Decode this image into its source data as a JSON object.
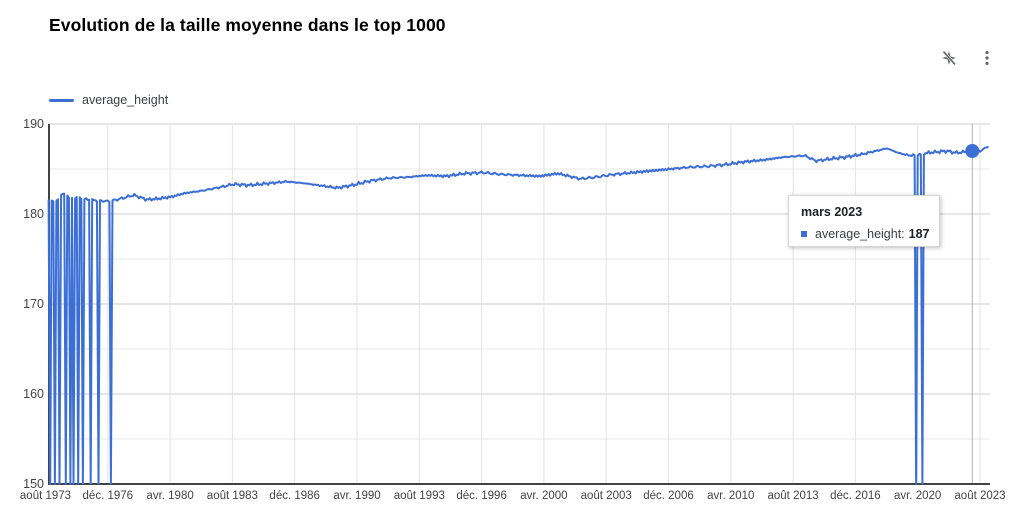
{
  "header": {
    "title": "Evolution de la taille moyenne dans le top 1000",
    "icons": [
      {
        "name": "smart-suggestions-off-icon"
      },
      {
        "name": "more-options-icon"
      }
    ]
  },
  "legend": {
    "label": "average_height"
  },
  "tooltip": {
    "title": "mars 2023",
    "series_label": "average_height:",
    "value": "187"
  },
  "colors": {
    "series": "#3c6fd6",
    "grid_major": "#cccccc",
    "grid_minor": "#e8e8e8",
    "grid_vertical": "#e3e3e3",
    "crosshair": "#b0b0b0",
    "axis_line": "#424242",
    "axis_text": "#444444",
    "icon": "#5f6368"
  },
  "chart_data": {
    "type": "line",
    "title": "Evolution de la taille moyenne dans le top 1000",
    "series_name": "average_height",
    "legend_position": "top-left",
    "grid": true,
    "ylim": [
      150,
      190
    ],
    "y_tick_values": [
      190,
      180,
      170,
      160,
      150
    ],
    "x_tick_labels": [
      "août 1973",
      "déc. 1976",
      "avr. 1980",
      "août 1983",
      "déc. 1986",
      "avr. 1990",
      "août 1993",
      "déc. 1996",
      "avr. 2000",
      "août 2003",
      "déc. 2006",
      "avr. 2010",
      "août 2013",
      "déc. 2016",
      "avr. 2020",
      "août 2023"
    ],
    "t_start": 1973.75,
    "t_end": 2024.0,
    "anchors": [
      [
        1973.75,
        181.4
      ],
      [
        1974.3,
        181.6
      ],
      [
        1974.5,
        182.3
      ],
      [
        1974.8,
        181.9
      ],
      [
        1975.3,
        181.8
      ],
      [
        1975.9,
        181.6
      ],
      [
        1976.4,
        181.5
      ],
      [
        1977.0,
        181.4
      ],
      [
        1977.6,
        181.7
      ],
      [
        1978.3,
        182.1
      ],
      [
        1979.0,
        181.6
      ],
      [
        1979.6,
        181.7
      ],
      [
        1980.3,
        181.9
      ],
      [
        1981.0,
        182.3
      ],
      [
        1982.0,
        182.6
      ],
      [
        1983.0,
        183.0
      ],
      [
        1983.6,
        183.3
      ],
      [
        1984.5,
        183.2
      ],
      [
        1985.5,
        183.4
      ],
      [
        1986.5,
        183.6
      ],
      [
        1987.5,
        183.4
      ],
      [
        1988.5,
        183.1
      ],
      [
        1989.2,
        182.9
      ],
      [
        1990.0,
        183.2
      ],
      [
        1991.0,
        183.7
      ],
      [
        1992.0,
        184.0
      ],
      [
        1993.0,
        184.1
      ],
      [
        1994.0,
        184.3
      ],
      [
        1995.0,
        184.2
      ],
      [
        1996.0,
        184.5
      ],
      [
        1997.0,
        184.6
      ],
      [
        1998.0,
        184.4
      ],
      [
        1999.0,
        184.3
      ],
      [
        2000.0,
        184.2
      ],
      [
        2001.0,
        184.5
      ],
      [
        2002.2,
        183.9
      ],
      [
        2003.0,
        184.1
      ],
      [
        2004.0,
        184.4
      ],
      [
        2005.0,
        184.6
      ],
      [
        2006.0,
        184.8
      ],
      [
        2007.0,
        185.0
      ],
      [
        2008.0,
        185.2
      ],
      [
        2009.0,
        185.3
      ],
      [
        2010.0,
        185.5
      ],
      [
        2011.0,
        185.8
      ],
      [
        2012.0,
        186.0
      ],
      [
        2013.0,
        186.3
      ],
      [
        2014.2,
        186.5
      ],
      [
        2014.8,
        185.9
      ],
      [
        2015.5,
        186.1
      ],
      [
        2016.3,
        186.3
      ],
      [
        2017.2,
        186.6
      ],
      [
        2018.0,
        187.0
      ],
      [
        2018.6,
        187.3
      ],
      [
        2019.2,
        186.8
      ],
      [
        2019.8,
        186.5
      ],
      [
        2020.3,
        186.6
      ],
      [
        2020.8,
        186.8
      ],
      [
        2021.3,
        186.9
      ],
      [
        2021.8,
        187.0
      ],
      [
        2022.3,
        186.8
      ],
      [
        2022.8,
        186.9
      ],
      [
        2023.17,
        187.0
      ],
      [
        2023.6,
        187.0
      ],
      [
        2024.0,
        187.5
      ]
    ],
    "drops": [
      1973.83,
      1974.05,
      1974.36,
      1974.66,
      1974.89,
      1975.12,
      1975.34,
      1975.55,
      1975.96,
      1976.44,
      1977.05,
      2020.15,
      2020.52
    ],
    "hover_point": {
      "label": "mars 2023",
      "t": 2023.17,
      "value": 187
    }
  }
}
